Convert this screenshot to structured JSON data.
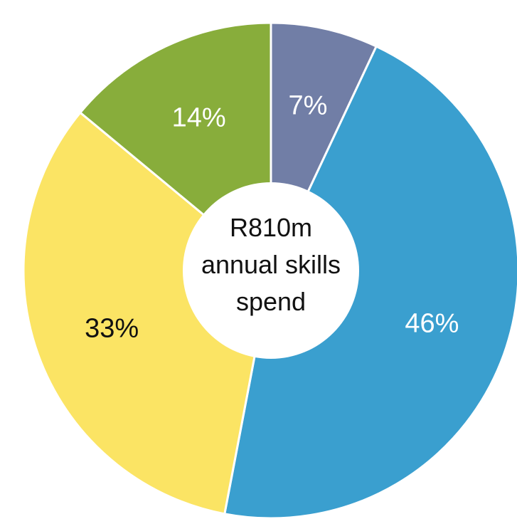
{
  "chart_data": {
    "type": "pie",
    "donut": true,
    "center_text": [
      "R810m",
      "annual skills",
      "spend"
    ],
    "slices": [
      {
        "value": 7,
        "label": "7%",
        "color": "#717ea6",
        "label_color": "#ffffff"
      },
      {
        "value": 46,
        "label": "46%",
        "color": "#3a9fcf",
        "label_color": "#ffffff"
      },
      {
        "value": 33,
        "label": "33%",
        "color": "#fbe464",
        "label_color": "#111111"
      },
      {
        "value": 14,
        "label": "14%",
        "color": "#88ad3b",
        "label_color": "#ffffff"
      }
    ],
    "start_angle_deg": 0,
    "direction": "clockwise",
    "legend": "none"
  }
}
